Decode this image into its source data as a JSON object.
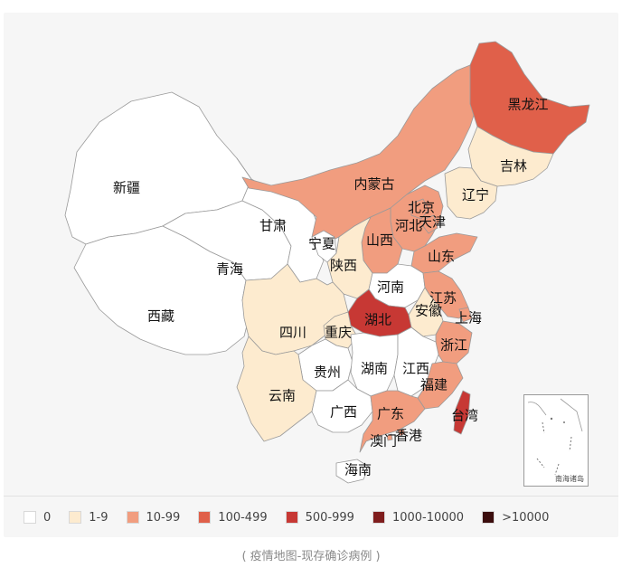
{
  "colors": {
    "c0": "#ffffff",
    "c1": "#fdebcf",
    "c2": "#f19d7f",
    "c3": "#e0604a",
    "c4": "#c73834",
    "c5": "#7f1d1d",
    "c6": "#3b0d0d"
  },
  "legend": [
    {
      "label": "0",
      "color_key": "c0"
    },
    {
      "label": "1-9",
      "color_key": "c1"
    },
    {
      "label": "10-99",
      "color_key": "c2"
    },
    {
      "label": "100-499",
      "color_key": "c3"
    },
    {
      "label": "500-999",
      "color_key": "c4"
    },
    {
      "label": "1000-10000",
      "color_key": "c5"
    },
    {
      "label": ">10000",
      "color_key": "c6"
    }
  ],
  "provinces": {
    "xinjiang": {
      "name": "新疆",
      "level": "c0"
    },
    "xizang": {
      "name": "西藏",
      "level": "c0"
    },
    "qinghai": {
      "name": "青海",
      "level": "c0"
    },
    "gansu": {
      "name": "甘肃",
      "level": "c0"
    },
    "neimenggu": {
      "name": "内蒙古",
      "level": "c2"
    },
    "heilongjiang": {
      "name": "黑龙江",
      "level": "c3"
    },
    "jilin": {
      "name": "吉林",
      "level": "c1"
    },
    "liaoning": {
      "name": "辽宁",
      "level": "c1"
    },
    "beijing": {
      "name": "北京",
      "level": "c2"
    },
    "tianjin": {
      "name": "天津",
      "level": "c2"
    },
    "hebei": {
      "name": "河北",
      "level": "c2"
    },
    "shanxi": {
      "name": "山西",
      "level": "c2"
    },
    "ningxia": {
      "name": "宁夏",
      "level": "c0"
    },
    "shaanxi": {
      "name": "陕西",
      "level": "c1"
    },
    "shandong": {
      "name": "山东",
      "level": "c2"
    },
    "henan": {
      "name": "河南",
      "level": "c0"
    },
    "jiangsu": {
      "name": "江苏",
      "level": "c2"
    },
    "anhui": {
      "name": "安徽",
      "level": "c1"
    },
    "shanghai": {
      "name": "上海",
      "level": "c2"
    },
    "hubei": {
      "name": "湖北",
      "level": "c4"
    },
    "sichuan": {
      "name": "四川",
      "level": "c1"
    },
    "chongqing": {
      "name": "重庆",
      "level": "c1"
    },
    "zhejiang": {
      "name": "浙江",
      "level": "c2"
    },
    "guizhou": {
      "name": "贵州",
      "level": "c0"
    },
    "hunan": {
      "name": "湖南",
      "level": "c0"
    },
    "jiangxi": {
      "name": "江西",
      "level": "c0"
    },
    "fujian": {
      "name": "福建",
      "level": "c2"
    },
    "yunnan": {
      "name": "云南",
      "level": "c1"
    },
    "guangxi": {
      "name": "广西",
      "level": "c0"
    },
    "guangdong": {
      "name": "广东",
      "level": "c2"
    },
    "taiwan": {
      "name": "台湾",
      "level": "c4"
    },
    "xianggang": {
      "name": "香港",
      "level": "c2"
    },
    "aomen": {
      "name": "澳门",
      "level": "c2"
    },
    "hainan": {
      "name": "海南",
      "level": "c0"
    }
  },
  "inset_label": "南海诸岛",
  "caption": "( 疫情地图-现存确诊病例 )"
}
